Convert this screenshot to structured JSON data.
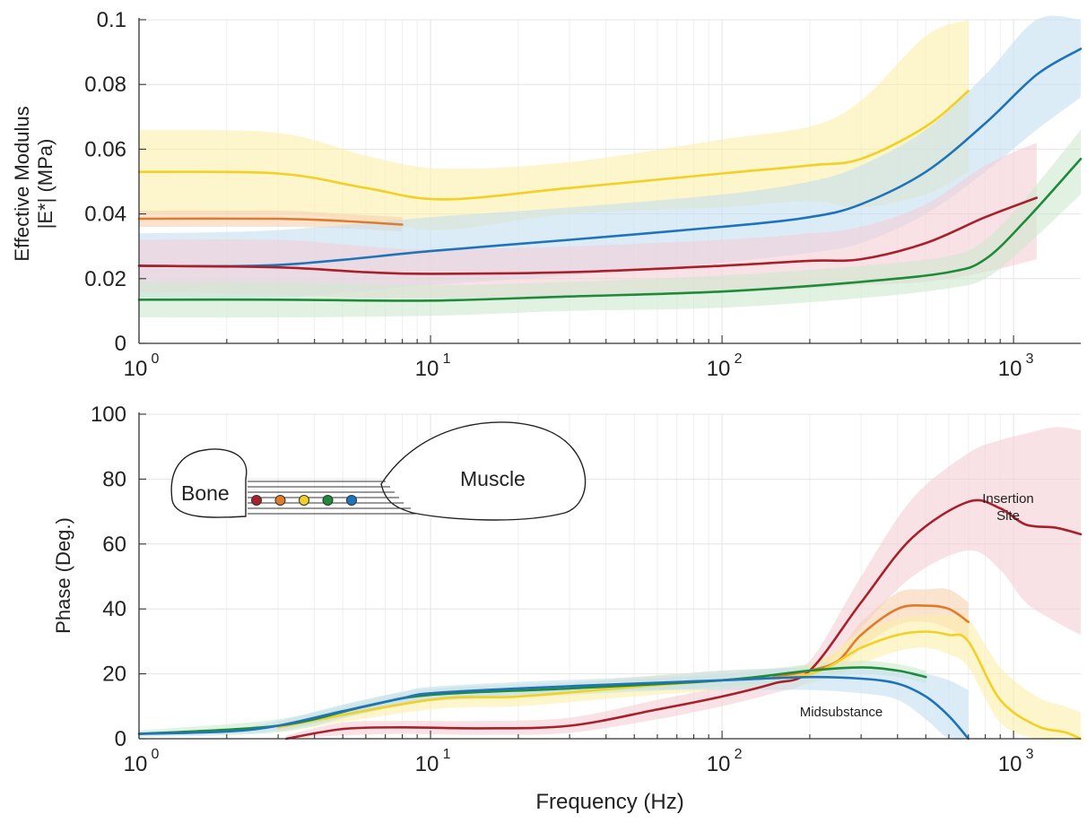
{
  "chart_data": [
    {
      "type": "line",
      "ylabel_line1": "Effective Modulus",
      "ylabel_line2": "|E*| (MPa)",
      "xlabel": "",
      "xscale": "log",
      "xlim": [
        1,
        1700
      ],
      "ylim": [
        0,
        0.1
      ],
      "yticks": [
        "0",
        "0.02",
        "0.04",
        "0.06",
        "0.08",
        "0.1"
      ],
      "xticks": [
        {
          "base": "10",
          "exp": "0"
        },
        {
          "base": "10",
          "exp": "1"
        },
        {
          "base": "10",
          "exp": "2"
        },
        {
          "base": "10",
          "exp": "3"
        }
      ],
      "grid": true,
      "series": [
        {
          "color": "#f2d024",
          "band": "#fcefa8",
          "x": [
            1,
            3,
            6,
            11,
            30,
            100,
            200,
            300,
            500,
            700
          ],
          "y": [
            0.053,
            0.0525,
            0.048,
            0.0445,
            0.048,
            0.0525,
            0.055,
            0.057,
            0.067,
            0.078
          ],
          "hi": [
            0.066,
            0.065,
            0.058,
            0.054,
            0.056,
            0.063,
            0.067,
            0.075,
            0.095,
            0.102
          ],
          "lo": [
            0.04,
            0.04,
            0.038,
            0.035,
            0.04,
            0.042,
            0.044,
            0.042,
            0.046,
            0.053
          ]
        },
        {
          "color": "#e07b2a",
          "band": "#f6d2b0",
          "x": [
            1,
            3,
            5,
            8
          ],
          "y": [
            0.0385,
            0.0385,
            0.0378,
            0.0367
          ],
          "hi": [
            0.041,
            0.041,
            0.04,
            0.039
          ],
          "lo": [
            0.036,
            0.036,
            0.0355,
            0.0345
          ]
        },
        {
          "color": "#1f74b9",
          "band": "#c5dff2",
          "x": [
            1,
            3,
            10,
            30,
            100,
            200,
            300,
            500,
            800,
            1200,
            1700
          ],
          "y": [
            0.024,
            0.0242,
            0.0285,
            0.032,
            0.036,
            0.039,
            0.043,
            0.053,
            0.068,
            0.083,
            0.091
          ],
          "hi": [
            0.034,
            0.035,
            0.039,
            0.042,
            0.046,
            0.05,
            0.055,
            0.066,
            0.083,
            0.1,
            0.1
          ],
          "lo": [
            0.014,
            0.014,
            0.018,
            0.021,
            0.025,
            0.028,
            0.031,
            0.04,
            0.053,
            0.066,
            0.076
          ]
        },
        {
          "color": "#a8202c",
          "band": "#f4cfd5",
          "x": [
            1,
            3,
            6,
            10,
            30,
            100,
            200,
            300,
            500,
            800,
            1200
          ],
          "y": [
            0.024,
            0.0235,
            0.022,
            0.0215,
            0.022,
            0.024,
            0.0255,
            0.026,
            0.031,
            0.039,
            0.045
          ],
          "hi": [
            0.032,
            0.032,
            0.03,
            0.029,
            0.03,
            0.032,
            0.034,
            0.036,
            0.043,
            0.055,
            0.062
          ],
          "lo": [
            0.016,
            0.015,
            0.014,
            0.014,
            0.014,
            0.016,
            0.017,
            0.018,
            0.019,
            0.022,
            0.026
          ]
        },
        {
          "color": "#1e8b3a",
          "band": "#cfe9cf",
          "x": [
            1,
            3,
            10,
            30,
            100,
            300,
            600,
            800,
            1100,
            1700
          ],
          "y": [
            0.0135,
            0.0135,
            0.0132,
            0.0145,
            0.016,
            0.019,
            0.022,
            0.026,
            0.038,
            0.057
          ],
          "hi": [
            0.019,
            0.019,
            0.018,
            0.019,
            0.021,
            0.024,
            0.027,
            0.032,
            0.045,
            0.066
          ],
          "lo": [
            0.008,
            0.008,
            0.0085,
            0.01,
            0.011,
            0.014,
            0.017,
            0.02,
            0.03,
            0.046
          ]
        }
      ]
    },
    {
      "type": "line",
      "ylabel": "Phase (Deg.)",
      "xlabel": "Frequency (Hz)",
      "xscale": "log",
      "xlim": [
        1,
        1700
      ],
      "ylim": [
        0,
        100
      ],
      "yticks": [
        "0",
        "20",
        "40",
        "60",
        "80",
        "100"
      ],
      "xticks": [
        {
          "base": "10",
          "exp": "0"
        },
        {
          "base": "10",
          "exp": "1"
        },
        {
          "base": "10",
          "exp": "2"
        },
        {
          "base": "10",
          "exp": "3"
        }
      ],
      "grid": true,
      "annotations": [
        {
          "text": "Insertion",
          "x": 1100,
          "y": 80
        },
        {
          "text": "Site",
          "x": 1100,
          "y": 74
        },
        {
          "text": "Midsubstance",
          "x": 250,
          "y": 10.5
        }
      ],
      "series": [
        {
          "color": "#a8202c",
          "band": "#f4cfd5",
          "x": [
            3.2,
            5,
            8,
            15,
            30,
            60,
            100,
            150,
            200,
            300,
            450,
            700,
            900,
            1100,
            1400,
            1700
          ],
          "y": [
            0,
            3,
            3.5,
            3.2,
            4,
            9,
            13,
            17,
            21,
            42,
            62,
            73,
            71,
            66,
            65,
            63
          ],
          "hi": [
            1,
            5,
            5.5,
            5.5,
            6.5,
            12,
            16,
            20,
            24,
            50,
            74,
            88,
            92,
            94,
            96,
            95
          ],
          "lo": [
            0,
            1,
            1.5,
            1.2,
            1.8,
            6,
            10,
            14,
            18,
            34,
            50,
            58,
            52,
            42,
            36,
            32
          ]
        },
        {
          "color": "#e07b2a",
          "band": "#f6d2b0",
          "x": [
            150,
            200,
            250,
            300,
            400,
            500,
            600,
            700
          ],
          "y": [
            19,
            21,
            24,
            32,
            40,
            41,
            40,
            36
          ],
          "hi": [
            21,
            23,
            27,
            36,
            45,
            46,
            46,
            42
          ],
          "lo": [
            17,
            19,
            21,
            28,
            35,
            36,
            34,
            30
          ]
        },
        {
          "color": "#f2d024",
          "band": "#fcefa8",
          "x": [
            3,
            10,
            20,
            50,
            100,
            200,
            300,
            400,
            500,
            600,
            700,
            900,
            1200,
            1500,
            1700
          ],
          "y": [
            3.5,
            12,
            13,
            16,
            18,
            20,
            28,
            32,
            33,
            32,
            30,
            12,
            4,
            2,
            0
          ],
          "hi": [
            5,
            15,
            16,
            19,
            21,
            23,
            33,
            37,
            38,
            38,
            37,
            22,
            13,
            10,
            8
          ],
          "lo": [
            2,
            9,
            10,
            13,
            15,
            17,
            23,
            27,
            28,
            26,
            22,
            5,
            0,
            0,
            0
          ]
        },
        {
          "color": "#1e8b3a",
          "band": "#cfe9cf",
          "x": [
            1,
            3,
            6,
            10,
            30,
            100,
            200,
            300,
            400,
            500
          ],
          "y": [
            1.5,
            4,
            10,
            13.5,
            15.5,
            18,
            21,
            22,
            21,
            19
          ],
          "hi": [
            2.5,
            6,
            12,
            15.5,
            17.5,
            20,
            23,
            24,
            23,
            21
          ],
          "lo": [
            0.5,
            2,
            8,
            11.5,
            13.5,
            16,
            19,
            20,
            19,
            17
          ]
        },
        {
          "color": "#1f74b9",
          "band": "#c5dff2",
          "x": [
            1,
            2,
            3,
            5,
            8,
            10,
            20,
            50,
            100,
            200,
            300,
            400,
            500,
            600,
            700
          ],
          "y": [
            1.5,
            2.2,
            4,
            8.5,
            12.5,
            14,
            15.5,
            17,
            18,
            19,
            18.5,
            17,
            13,
            7,
            0
          ],
          "hi": [
            2,
            3,
            5.5,
            10.5,
            14.5,
            16,
            17.5,
            19,
            21,
            22,
            22,
            21,
            20,
            18,
            15
          ],
          "lo": [
            1,
            1.5,
            2.5,
            6.5,
            10.5,
            12,
            13.5,
            15,
            15,
            15,
            14,
            12,
            6,
            0,
            0
          ]
        }
      ]
    }
  ],
  "inset": {
    "bone_label": "Bone",
    "muscle_label": "Muscle",
    "dots": [
      "#a8202c",
      "#e07b2a",
      "#f2d024",
      "#1e8b3a",
      "#1f74b9"
    ]
  }
}
